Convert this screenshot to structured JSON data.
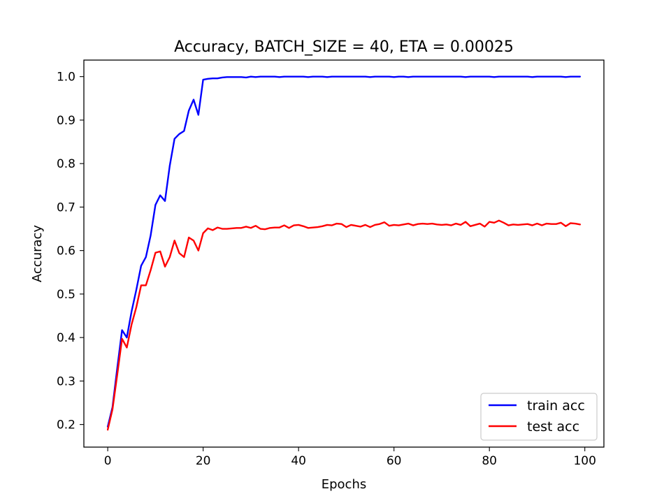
{
  "chart_data": {
    "type": "line",
    "title": "Accuracy, BATCH_SIZE = 40, ETA = 0.00025",
    "xlabel": "Epochs",
    "ylabel": "Accuracy",
    "xlim": [
      -5,
      104
    ],
    "ylim": [
      0.148,
      1.038
    ],
    "xticks": [
      0,
      20,
      40,
      60,
      80,
      100
    ],
    "xtick_labels": [
      "0",
      "20",
      "40",
      "60",
      "80",
      "100"
    ],
    "yticks": [
      0.2,
      0.3,
      0.4,
      0.5,
      0.6,
      0.7,
      0.8,
      0.9,
      1.0
    ],
    "ytick_labels": [
      "0.2",
      "0.3",
      "0.4",
      "0.5",
      "0.6",
      "0.7",
      "0.8",
      "0.9",
      "1.0"
    ],
    "grid": false,
    "legend_position": "bottom-right",
    "series": [
      {
        "name": "train acc",
        "color": "#0000ff",
        "values": [
          0.195,
          0.24,
          0.33,
          0.417,
          0.4,
          0.46,
          0.51,
          0.565,
          0.585,
          0.635,
          0.705,
          0.727,
          0.714,
          0.795,
          0.857,
          0.868,
          0.875,
          0.922,
          0.947,
          0.912,
          0.993,
          0.995,
          0.996,
          0.996,
          0.998,
          0.999,
          0.999,
          0.999,
          0.999,
          0.998,
          1.0,
          0.999,
          1.0,
          1.0,
          1.0,
          1.0,
          0.999,
          1.0,
          1.0,
          1.0,
          1.0,
          1.0,
          0.999,
          1.0,
          1.0,
          1.0,
          0.999,
          1.0,
          1.0,
          1.0,
          1.0,
          1.0,
          1.0,
          1.0,
          1.0,
          0.999,
          1.0,
          1.0,
          1.0,
          1.0,
          0.999,
          1.0,
          1.0,
          0.999,
          1.0,
          1.0,
          1.0,
          1.0,
          1.0,
          1.0,
          1.0,
          1.0,
          1.0,
          1.0,
          1.0,
          0.999,
          1.0,
          1.0,
          1.0,
          1.0,
          1.0,
          0.999,
          1.0,
          1.0,
          1.0,
          1.0,
          1.0,
          1.0,
          1.0,
          0.999,
          1.0,
          1.0,
          1.0,
          1.0,
          1.0,
          1.0,
          0.999,
          1.0,
          1.0,
          1.0
        ]
      },
      {
        "name": "test acc",
        "color": "#ff0000",
        "values": [
          0.188,
          0.235,
          0.315,
          0.397,
          0.377,
          0.43,
          0.47,
          0.52,
          0.52,
          0.555,
          0.595,
          0.598,
          0.563,
          0.585,
          0.623,
          0.594,
          0.585,
          0.63,
          0.623,
          0.6,
          0.64,
          0.651,
          0.647,
          0.653,
          0.65,
          0.65,
          0.651,
          0.652,
          0.652,
          0.655,
          0.652,
          0.657,
          0.65,
          0.649,
          0.652,
          0.653,
          0.653,
          0.658,
          0.652,
          0.658,
          0.659,
          0.656,
          0.652,
          0.653,
          0.654,
          0.656,
          0.659,
          0.658,
          0.662,
          0.661,
          0.654,
          0.659,
          0.657,
          0.655,
          0.659,
          0.654,
          0.659,
          0.661,
          0.665,
          0.657,
          0.659,
          0.658,
          0.66,
          0.662,
          0.658,
          0.661,
          0.662,
          0.661,
          0.662,
          0.66,
          0.659,
          0.66,
          0.658,
          0.662,
          0.659,
          0.666,
          0.656,
          0.659,
          0.662,
          0.655,
          0.666,
          0.664,
          0.669,
          0.664,
          0.658,
          0.66,
          0.659,
          0.66,
          0.661,
          0.658,
          0.662,
          0.658,
          0.662,
          0.661,
          0.661,
          0.664,
          0.656,
          0.663,
          0.662,
          0.66
        ]
      }
    ]
  }
}
